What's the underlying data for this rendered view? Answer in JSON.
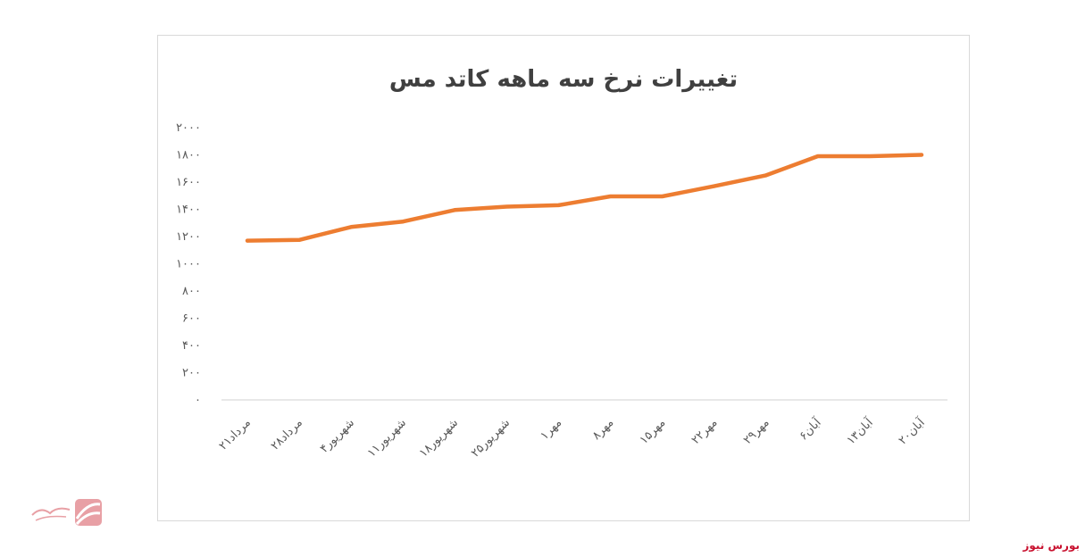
{
  "chart_data": {
    "type": "line",
    "title": "تغییرات نرخ سه ماهه کاتد مس",
    "xlabel": "",
    "ylabel": "",
    "ylim": [
      0,
      2000
    ],
    "y_ticks": [
      "۰",
      "۲۰۰",
      "۴۰۰",
      "۶۰۰",
      "۸۰۰",
      "۱۰۰۰",
      "۱۲۰۰",
      "۱۴۰۰",
      "۱۶۰۰",
      "۱۸۰۰",
      "۲۰۰۰"
    ],
    "y_tick_values": [
      0,
      200,
      400,
      600,
      800,
      1000,
      1200,
      1400,
      1600,
      1800,
      2000
    ],
    "categories": [
      "۲۱مرداد",
      "۲۸مرداد",
      "۴شهریور",
      "۱۱شهریور",
      "۱۸شهریور",
      "۲۵شهریور",
      "۱مهر",
      "۸مهر",
      "۱۵مهر",
      "۲۲مهر",
      "۲۹مهر",
      "۶آبان",
      "۱۳آبان",
      "۲۰آبان"
    ],
    "series": [
      {
        "values": [
          1170,
          1175,
          1270,
          1310,
          1395,
          1420,
          1430,
          1495,
          1495,
          1570,
          1650,
          1790,
          1790,
          1800
        ]
      }
    ],
    "grid": false,
    "legend": "none",
    "colors": {
      "line": "#ed7d31",
      "axis": "#d9d9d9",
      "text": "#595959"
    }
  },
  "watermark": {
    "text": "بورس نیوز"
  },
  "brand": {
    "text": "بورس نیوز"
  }
}
